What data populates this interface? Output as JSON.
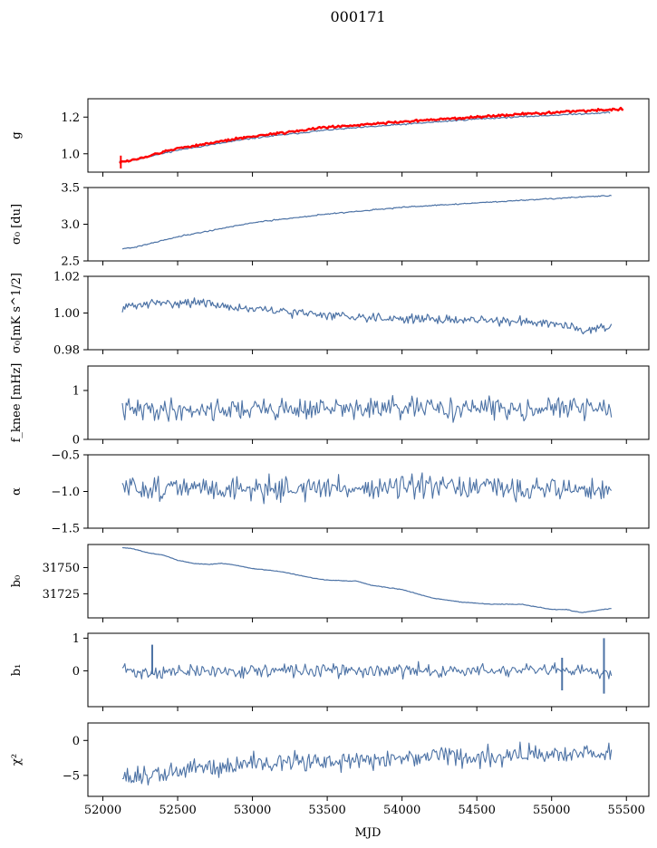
{
  "figure": {
    "title": "000171",
    "xlabel": "MJD",
    "x_ticks": [
      52000,
      52500,
      53000,
      53500,
      54000,
      54500,
      55000,
      55500
    ],
    "x_tick_labels": [
      "52000",
      "52500",
      "53000",
      "53500",
      "54000",
      "54500",
      "55000",
      "55500"
    ],
    "xlim": [
      51900,
      55650
    ],
    "line_color": "#4c72a5",
    "highlight_color": "#ff0000"
  },
  "chart_data": [
    {
      "type": "line",
      "ylabel": "g",
      "ylim": [
        0.9,
        1.3
      ],
      "y_ticks": [
        1.0,
        1.2
      ],
      "y_tick_labels": [
        "1.0",
        "1.2"
      ],
      "show_x_tick_labels": false,
      "series": [
        {
          "color": "#4c72a5",
          "width": 1.2,
          "noise": 0.002,
          "seed": 11,
          "x": [
            52110,
            52200,
            52500,
            53000,
            53500,
            54000,
            54500,
            55000,
            55390
          ],
          "y": [
            0.96,
            0.965,
            1.02,
            1.085,
            1.13,
            1.16,
            1.19,
            1.21,
            1.225
          ]
        },
        {
          "color": "#ff0000",
          "width": 2.4,
          "noise": 0.003,
          "seed": 12,
          "x": [
            52110,
            52200,
            52500,
            53000,
            53500,
            54000,
            54500,
            55000,
            55480
          ],
          "y": [
            0.955,
            0.965,
            1.03,
            1.095,
            1.145,
            1.175,
            1.2,
            1.225,
            1.245
          ]
        }
      ],
      "spikes": [
        {
          "x": 52120,
          "y0": 0.92,
          "y1": 0.99,
          "color": "#ff0000"
        }
      ]
    },
    {
      "type": "line",
      "ylabel": "σ₀ [du]",
      "ylim": [
        2.5,
        3.5
      ],
      "y_ticks": [
        2.5,
        3.0,
        3.5
      ],
      "y_tick_labels": [
        "2.5",
        "3.0",
        "3.5"
      ],
      "show_x_tick_labels": false,
      "series": [
        {
          "color": "#4c72a5",
          "width": 1.2,
          "noise": 0.004,
          "seed": 21,
          "x": [
            52130,
            52200,
            52500,
            53000,
            53500,
            54000,
            54500,
            55000,
            55400
          ],
          "y": [
            2.67,
            2.68,
            2.83,
            3.02,
            3.14,
            3.23,
            3.29,
            3.35,
            3.39
          ]
        }
      ]
    },
    {
      "type": "line",
      "ylabel": "σ₀[mK s^1/2]",
      "ylim": [
        0.98,
        1.02
      ],
      "y_ticks": [
        0.98,
        1.0,
        1.02
      ],
      "y_tick_labels": [
        "0.98",
        "1.00",
        "1.02"
      ],
      "show_x_tick_labels": false,
      "series": [
        {
          "color": "#4c72a5",
          "width": 1.2,
          "noise": 0.0012,
          "seed": 31,
          "x": [
            52130,
            52300,
            52600,
            53000,
            53500,
            54000,
            54500,
            55000,
            55200,
            55400
          ],
          "y": [
            1.003,
            1.005,
            1.006,
            1.002,
            0.999,
            0.997,
            0.996,
            0.995,
            0.991,
            0.993
          ]
        }
      ]
    },
    {
      "type": "line",
      "ylabel": "f_knee [mHz]",
      "ylim": [
        0,
        1.5
      ],
      "y_ticks": [
        0,
        1
      ],
      "y_tick_labels": [
        "0",
        "1"
      ],
      "show_x_tick_labels": false,
      "series": [
        {
          "color": "#4c72a5",
          "width": 1.1,
          "noise": 0.11,
          "seed": 41,
          "x": [
            52130,
            53000,
            54000,
            55000,
            55400
          ],
          "y": [
            0.6,
            0.62,
            0.63,
            0.64,
            0.63
          ]
        }
      ]
    },
    {
      "type": "line",
      "ylabel": "α",
      "ylim": [
        -1.5,
        -0.5
      ],
      "y_ticks": [
        -1.5,
        -1.0,
        -0.5
      ],
      "y_tick_labels": [
        "−1.5",
        "−1.0",
        "−0.5"
      ],
      "show_x_tick_labels": false,
      "series": [
        {
          "color": "#4c72a5",
          "width": 1.1,
          "noise": 0.08,
          "seed": 51,
          "x": [
            52130,
            53000,
            54000,
            55000,
            55400
          ],
          "y": [
            -0.95,
            -0.96,
            -0.95,
            -0.96,
            -0.98
          ]
        }
      ]
    },
    {
      "type": "line",
      "ylabel": "b₀",
      "ylim": [
        31702,
        31772
      ],
      "y_ticks": [
        31725,
        31750
      ],
      "y_tick_labels": [
        "31725",
        "31750"
      ],
      "show_x_tick_labels": false,
      "series": [
        {
          "color": "#4c72a5",
          "width": 1.2,
          "noise": 0.15,
          "seed": 61,
          "x": [
            52130,
            52200,
            52300,
            52400,
            52500,
            52600,
            52700,
            52800,
            52900,
            53000,
            53200,
            53400,
            53500,
            53700,
            53800,
            54000,
            54200,
            54400,
            54600,
            54800,
            55000,
            55100,
            55200,
            55300,
            55400
          ],
          "y": [
            31769,
            31768,
            31764,
            31762,
            31757,
            31754,
            31753,
            31754,
            31752,
            31749,
            31746,
            31740,
            31738,
            31737,
            31733,
            31729,
            31721,
            31717,
            31715,
            31715,
            31710,
            31710,
            31707,
            31709,
            31711
          ]
        }
      ]
    },
    {
      "type": "line",
      "ylabel": "b₁",
      "ylim": [
        -1.1,
        1.15
      ],
      "y_ticks": [
        0,
        1
      ],
      "y_tick_labels": [
        "0",
        "1"
      ],
      "show_x_tick_labels": false,
      "series": [
        {
          "color": "#4c72a5",
          "width": 1.1,
          "noise": 0.1,
          "seed": 71,
          "x": [
            52130,
            52200,
            53000,
            54000,
            55000,
            55400
          ],
          "y": [
            0.1,
            -0.05,
            0.0,
            0.0,
            0.0,
            -0.05
          ]
        }
      ],
      "spikes": [
        {
          "x": 52330,
          "y0": -0.1,
          "y1": 0.8,
          "color": "#4c72a5"
        },
        {
          "x": 55070,
          "y0": -0.6,
          "y1": 0.4,
          "color": "#4c72a5"
        },
        {
          "x": 55350,
          "y0": -0.7,
          "y1": 1.0,
          "color": "#4c72a5"
        }
      ]
    },
    {
      "type": "line",
      "ylabel": "χ²",
      "ylim": [
        -8,
        2.5
      ],
      "y_ticks": [
        -5,
        0
      ],
      "y_tick_labels": [
        "−5",
        "0"
      ],
      "show_x_tick_labels": true,
      "series": [
        {
          "color": "#4c72a5",
          "width": 1.1,
          "noise": 0.75,
          "seed": 81,
          "x": [
            52130,
            52300,
            52600,
            53000,
            53500,
            54000,
            54500,
            55000,
            55400
          ],
          "y": [
            -5.0,
            -5.3,
            -4.0,
            -3.3,
            -2.9,
            -2.6,
            -2.3,
            -1.9,
            -1.7
          ]
        }
      ]
    }
  ]
}
